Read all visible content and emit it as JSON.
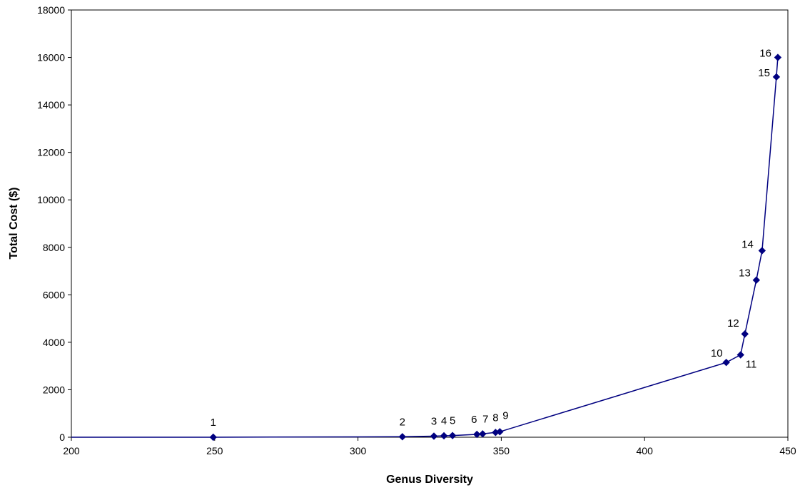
{
  "chart_data": {
    "type": "line",
    "title": "",
    "xlabel": "Genus Diversity",
    "ylabel": "Total Cost ($)",
    "xlim": [
      200,
      450
    ],
    "ylim": [
      0,
      18000
    ],
    "xticks": [
      200,
      250,
      300,
      350,
      400,
      450
    ],
    "yticks": [
      0,
      2000,
      4000,
      6000,
      8000,
      10000,
      12000,
      14000,
      16000,
      18000
    ],
    "grid": false,
    "legend": "none",
    "series": [
      {
        "color": "#000080",
        "marker": "diamond",
        "points": [
          {
            "label": "1",
            "x": 249.5,
            "y": 0
          },
          {
            "label": "2",
            "x": 315.5,
            "y": 20
          },
          {
            "label": "3",
            "x": 326.5,
            "y": 45
          },
          {
            "label": "4",
            "x": 330,
            "y": 60
          },
          {
            "label": "5",
            "x": 333,
            "y": 70
          },
          {
            "label": "6",
            "x": 341.5,
            "y": 120
          },
          {
            "label": "7",
            "x": 343.5,
            "y": 140
          },
          {
            "label": "8",
            "x": 348,
            "y": 200
          },
          {
            "label": "9",
            "x": 349.5,
            "y": 230
          },
          {
            "label": "10",
            "x": 428.5,
            "y": 3150
          },
          {
            "label": "11",
            "x": 433.5,
            "y": 3470
          },
          {
            "label": "12",
            "x": 435,
            "y": 4350
          },
          {
            "label": "13",
            "x": 439,
            "y": 6620
          },
          {
            "label": "14",
            "x": 441,
            "y": 7860
          },
          {
            "label": "15",
            "x": 446,
            "y": 15180
          },
          {
            "label": "16",
            "x": 446.5,
            "y": 16000
          }
        ]
      }
    ]
  }
}
